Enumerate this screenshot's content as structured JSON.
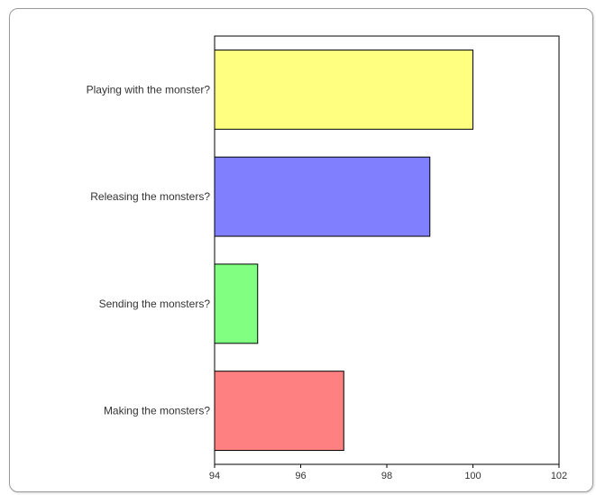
{
  "chart_data": {
    "type": "bar",
    "orientation": "horizontal",
    "categories": [
      "Playing with the monster?",
      "Releasing the monsters?",
      "Sending the monsters?",
      "Making the monsters?"
    ],
    "values": [
      100,
      99,
      95,
      97
    ],
    "colors": [
      "#ffff80",
      "#8080ff",
      "#80ff80",
      "#ff8080"
    ],
    "xlim": [
      94,
      102
    ],
    "xticks": [
      "94",
      "96",
      "98",
      "100",
      "102"
    ],
    "title": "",
    "xlabel": "",
    "ylabel": "",
    "grid": false,
    "legend": "none"
  }
}
